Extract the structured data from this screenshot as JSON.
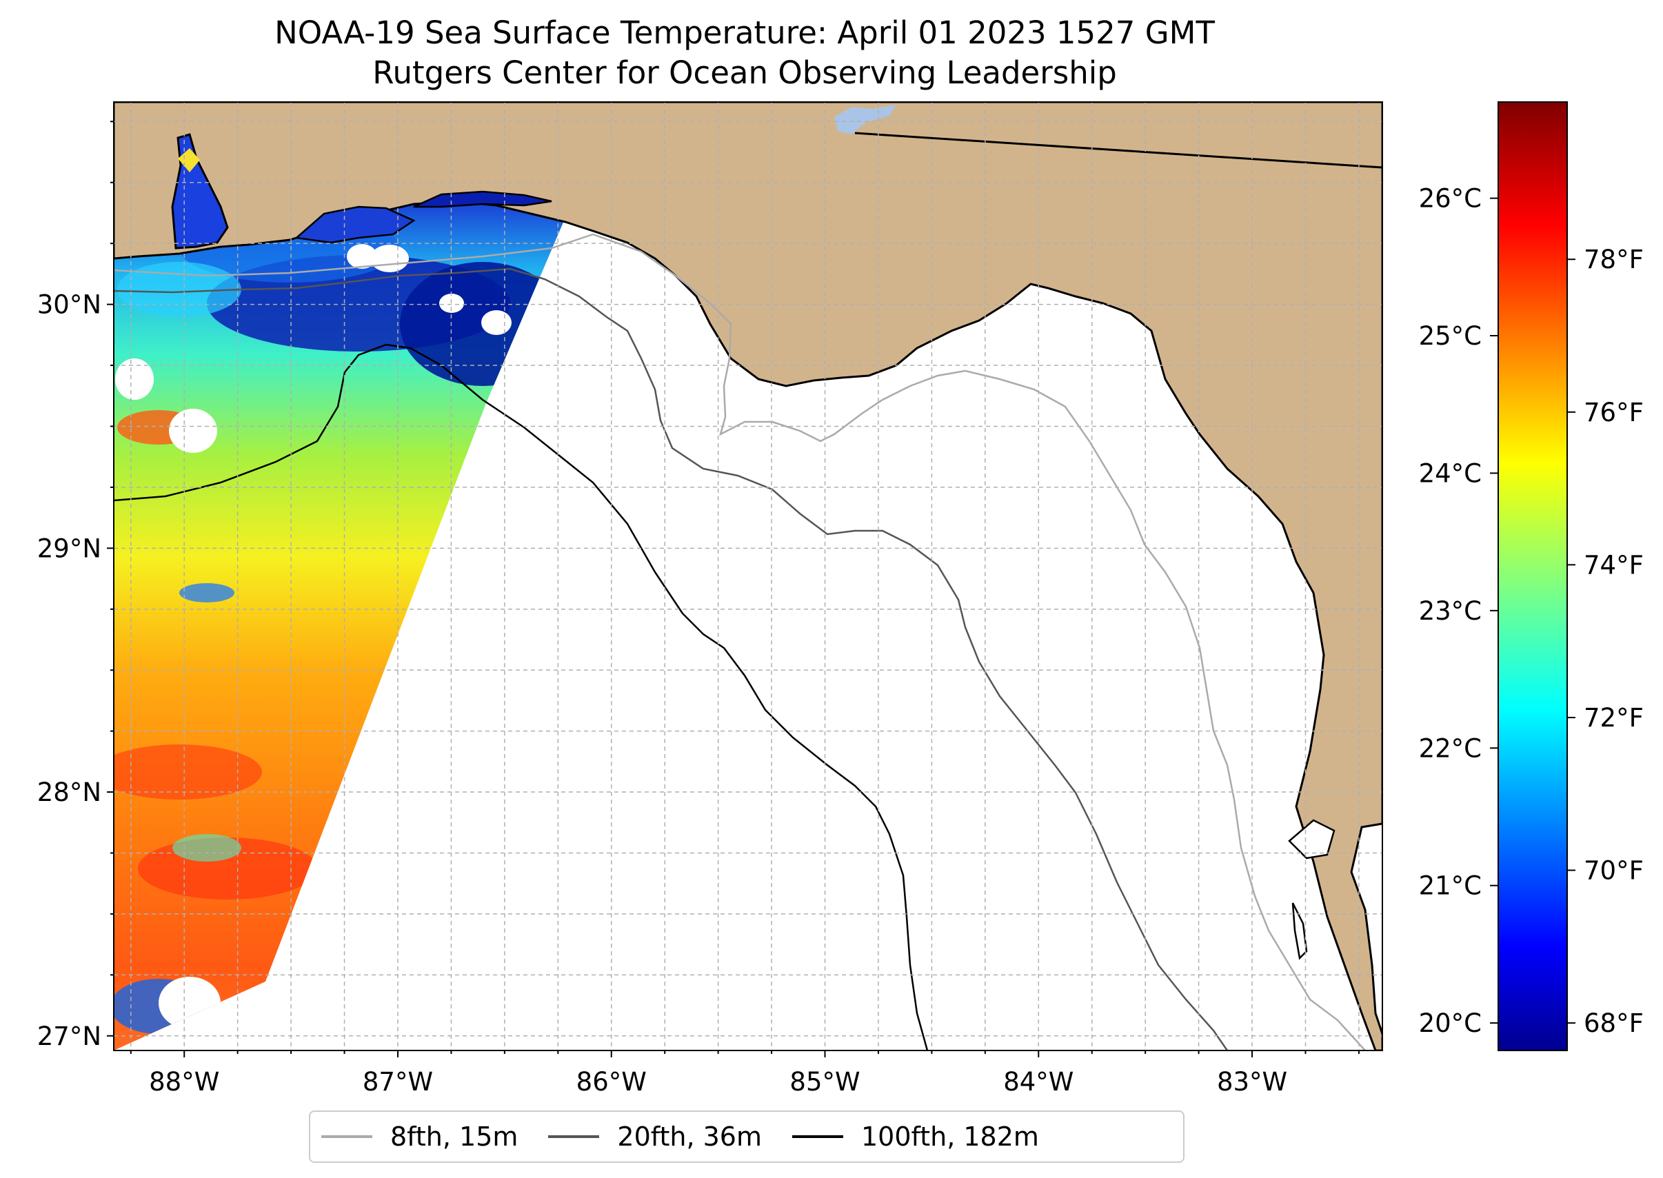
{
  "title": {
    "line1": "NOAA-19 Sea Surface Temperature: April 01 2023 1527 GMT",
    "line2": "Rutgers Center for Ocean Observing Leadership"
  },
  "map": {
    "lon_range": [
      -88.33,
      -82.39
    ],
    "lat_range": [
      26.94,
      30.83
    ],
    "lon_ticks": [
      {
        "value": -88,
        "label": "88°W"
      },
      {
        "value": -87,
        "label": "87°W"
      },
      {
        "value": -86,
        "label": "86°W"
      },
      {
        "value": -85,
        "label": "85°W"
      },
      {
        "value": -84,
        "label": "84°W"
      },
      {
        "value": -83,
        "label": "83°W"
      }
    ],
    "lat_ticks": [
      {
        "value": 27,
        "label": "27°N"
      },
      {
        "value": 28,
        "label": "28°N"
      },
      {
        "value": 29,
        "label": "29°N"
      },
      {
        "value": 30,
        "label": "30°N"
      }
    ],
    "grid_step_degrees": 0.25,
    "colors": {
      "land": "#d2b48c",
      "lake": "#a9c4e6",
      "coastline": "#000000",
      "grid": "#b0b0b0"
    }
  },
  "colorbar": {
    "colormap": "jet",
    "celsius_range": [
      19.8,
      26.7
    ],
    "celsius_ticks": [
      {
        "value": 20,
        "label": "20°C"
      },
      {
        "value": 21,
        "label": "21°C"
      },
      {
        "value": 22,
        "label": "22°C"
      },
      {
        "value": 23,
        "label": "23°C"
      },
      {
        "value": 24,
        "label": "24°C"
      },
      {
        "value": 25,
        "label": "25°C"
      },
      {
        "value": 26,
        "label": "26°C"
      }
    ],
    "fahrenheit_ticks": [
      {
        "value": 68,
        "label": "68°F"
      },
      {
        "value": 70,
        "label": "70°F"
      },
      {
        "value": 72,
        "label": "72°F"
      },
      {
        "value": 74,
        "label": "74°F"
      },
      {
        "value": 76,
        "label": "76°F"
      },
      {
        "value": 78,
        "label": "78°F"
      }
    ]
  },
  "legend": {
    "items": [
      {
        "label": "8fth, 15m",
        "color": "#aaaaaa"
      },
      {
        "label": "20fth, 36m",
        "color": "#555555"
      },
      {
        "label": "100fth, 182m",
        "color": "#000000"
      }
    ]
  }
}
